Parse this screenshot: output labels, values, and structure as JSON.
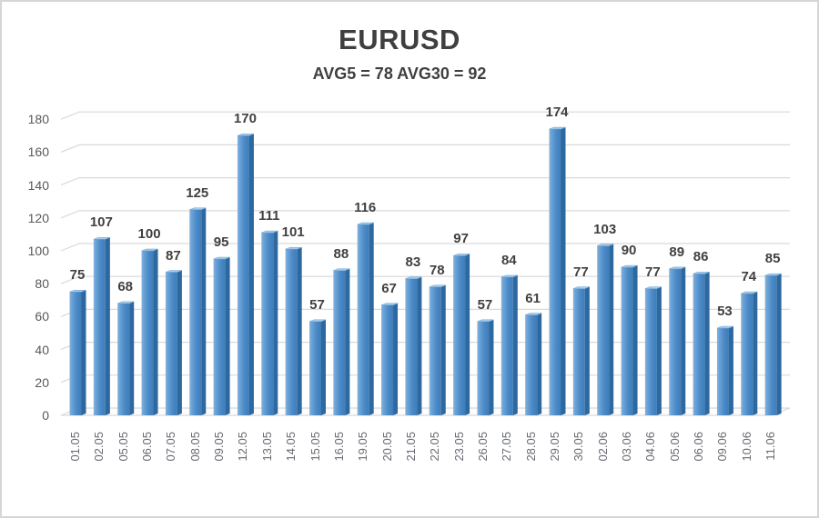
{
  "window": {
    "background": "#ffffff",
    "border_color": "#d6d6d6"
  },
  "chart_data": {
    "type": "bar",
    "style": "3d-column",
    "title": "EURUSD",
    "subtitle": "AVG5 = 78 AVG30 = 92",
    "avg5": 78,
    "avg30": 92,
    "categories": [
      "01.05",
      "02.05",
      "05.05",
      "06.05",
      "07.05",
      "08.05",
      "09.05",
      "12.05",
      "13.05",
      "14.05",
      "15.05",
      "16.05",
      "19.05",
      "20.05",
      "21.05",
      "22.05",
      "23.05",
      "26.05",
      "27.05",
      "28.05",
      "29.05",
      "30.05",
      "02.06",
      "03.06",
      "04.06",
      "05.06",
      "06.06",
      "09.06",
      "10.06",
      "11.06"
    ],
    "values": [
      75,
      107,
      68,
      100,
      87,
      125,
      95,
      170,
      111,
      101,
      57,
      88,
      116,
      67,
      83,
      78,
      97,
      57,
      84,
      61,
      174,
      77,
      103,
      90,
      77,
      89,
      86,
      53,
      74,
      85
    ],
    "xlabel": "",
    "ylabel": "",
    "ylim": [
      0,
      180
    ],
    "ytick_step": 20,
    "grid": true,
    "legend_position": "none",
    "colors": {
      "bar_front_light": "#85b3e0",
      "bar_front": "#4a89c6",
      "bar_front_dark": "#3f7db9",
      "bar_side": "#2d689e",
      "bar_top": "#a6cbe9",
      "gridline": "#d9d9d9",
      "floor_fill": "#fdfdfd",
      "title_text": "#3f3f3f",
      "value_label_text": "#404040",
      "axis_label_text": "#595959"
    }
  }
}
